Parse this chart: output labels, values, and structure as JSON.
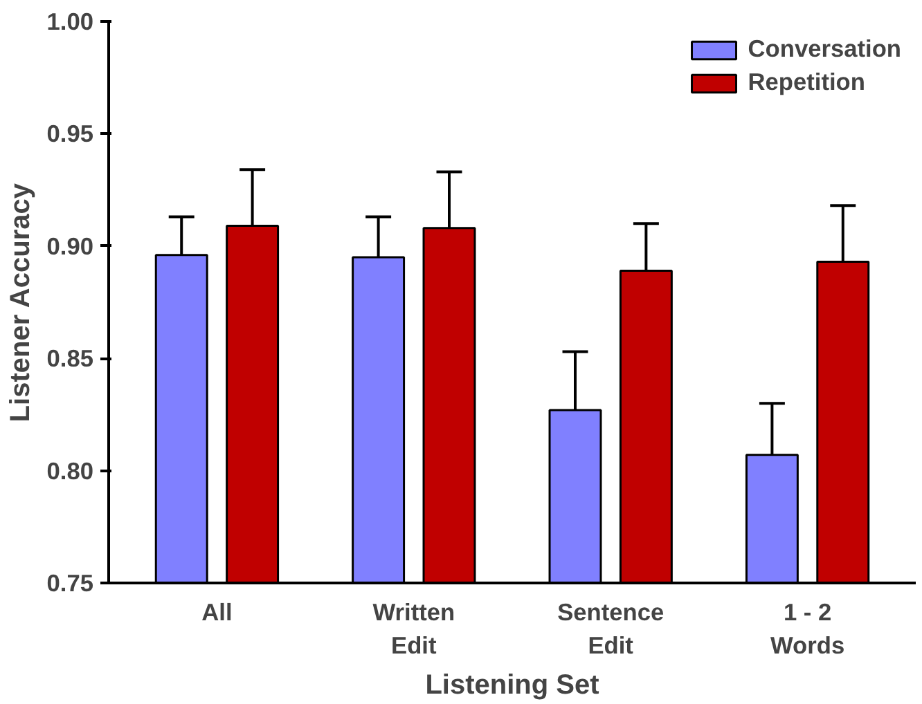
{
  "chart_data": {
    "type": "bar",
    "xlabel": "Listening Set",
    "ylabel": "Listener Accuracy",
    "categories": [
      "All",
      "Written\nEdit",
      "Sentence\nEdit",
      "1 - 2\nWords"
    ],
    "series": [
      {
        "name": "Conversation",
        "color": "#8080ff",
        "values": [
          0.896,
          0.895,
          0.827,
          0.807
        ],
        "errors": [
          [
            0.896,
            0.913
          ],
          [
            0.895,
            0.913
          ],
          [
            0.827,
            0.853
          ],
          [
            0.807,
            0.83
          ]
        ]
      },
      {
        "name": "Repetition",
        "color": "#c00000",
        "values": [
          0.909,
          0.908,
          0.889,
          0.893
        ],
        "errors": [
          [
            0.909,
            0.934
          ],
          [
            0.908,
            0.933
          ],
          [
            0.889,
            0.91
          ],
          [
            0.893,
            0.918
          ]
        ]
      }
    ],
    "ylim": [
      0.75,
      1.0
    ],
    "yticks": [
      {
        "value": 0.75,
        "label": "0.75"
      },
      {
        "value": 0.8,
        "label": "0.80"
      },
      {
        "value": 0.85,
        "label": "0.85"
      },
      {
        "value": 0.9,
        "label": "0.90"
      },
      {
        "value": 0.95,
        "label": "0.95"
      },
      {
        "value": 1.0,
        "label": "1.00"
      }
    ],
    "grid": false,
    "legend": "top right"
  }
}
